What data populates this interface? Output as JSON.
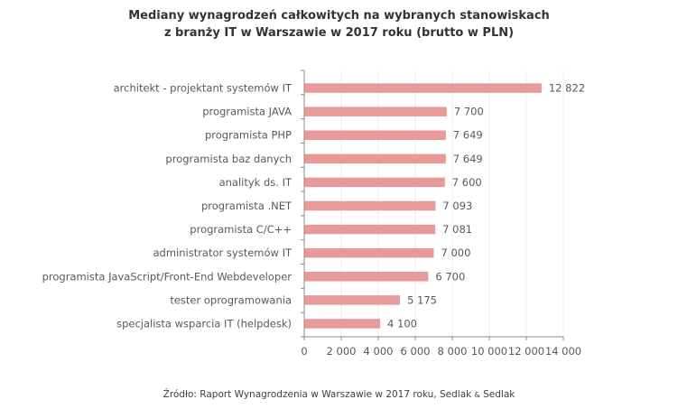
{
  "chart_data": {
    "type": "bar",
    "orientation": "horizontal",
    "title": "Mediany wynagrodzeń całkowitych na wybranych stanowiskach z branży IT w Warszawie w 2017 roku (brutto w PLN)",
    "title_lines": [
      "Mediany wynagrodzeń całkowitych na wybranych stanowiskach",
      "z branży IT w Warszawie w 2017 roku (brutto w PLN)"
    ],
    "categories": [
      "architekt - projektant systemów IT",
      "programista JAVA",
      "programista PHP",
      "programista baz danych",
      "analityk ds. IT",
      "programista .NET",
      "programista C/C++",
      "administrator systemów IT",
      "programista JavaScript/Front-End Webdeveloper",
      "tester oprogramowania",
      "specjalista wsparcia IT (helpdesk)"
    ],
    "values": [
      12822,
      7700,
      7649,
      7649,
      7600,
      7093,
      7081,
      7000,
      6700,
      5175,
      4100
    ],
    "value_labels": [
      "12 822",
      "7 700",
      "7 649",
      "7 649",
      "7 600",
      "7 093",
      "7 081",
      "7 000",
      "6 700",
      "5 175",
      "4 100"
    ],
    "xlabel": "",
    "ylabel": "",
    "xlim": [
      0,
      14000
    ],
    "xticks": [
      0,
      2000,
      4000,
      6000,
      8000,
      10000,
      12000,
      14000
    ],
    "xtick_labels": [
      "0",
      "2 000",
      "4 000",
      "6 000",
      "8 000",
      "10 000",
      "12 000",
      "14 000"
    ],
    "grid": true,
    "legend": "none",
    "bar_color": "#e8999a",
    "source_text": "Źródło: Raport Wynagrodzenia w Warszawie w 2017 roku, Sedlak ",
    "source_amp": "&",
    "source_end": " Sedlak"
  }
}
